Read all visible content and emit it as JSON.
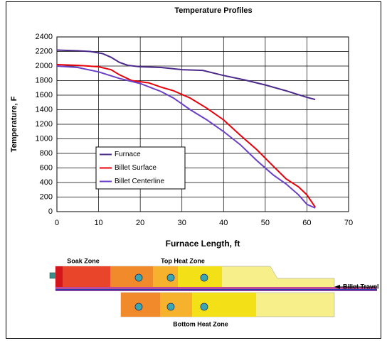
{
  "chart_data": {
    "type": "line",
    "title": "Temperature Profiles",
    "x_label": "Furnace Length, ft",
    "y_label": "Temperature, F",
    "xlim": [
      0,
      70
    ],
    "xticks": [
      0,
      10,
      20,
      30,
      40,
      50,
      60,
      70
    ],
    "ylim": [
      0,
      2400
    ],
    "yticks": [
      0,
      200,
      400,
      600,
      800,
      1000,
      1200,
      1400,
      1600,
      1800,
      2000,
      2200,
      2400
    ],
    "grid": true,
    "legend": "lower left",
    "series": [
      {
        "name": "Furnace",
        "color": "#4b2a8c",
        "x": [
          0,
          5,
          8,
          11,
          13,
          15,
          17,
          20,
          25,
          30,
          35,
          40,
          45,
          50,
          55,
          60,
          62
        ],
        "values": [
          2220,
          2210,
          2200,
          2170,
          2120,
          2050,
          2010,
          1990,
          1980,
          1950,
          1940,
          1870,
          1810,
          1740,
          1660,
          1570,
          1540
        ]
      },
      {
        "name": "Billet Surface",
        "color": "#e8000b",
        "x": [
          0,
          5,
          10,
          13,
          15,
          18,
          22,
          25,
          28,
          32,
          36,
          40,
          44,
          48,
          52,
          55,
          58,
          60,
          62
        ],
        "values": [
          2020,
          2010,
          1990,
          1950,
          1880,
          1800,
          1770,
          1710,
          1660,
          1560,
          1420,
          1260,
          1050,
          850,
          620,
          450,
          340,
          230,
          60
        ]
      },
      {
        "name": "Billet Centerline",
        "color": "#6a3fc9",
        "x": [
          0,
          5,
          10,
          15,
          20,
          25,
          28,
          32,
          36,
          40,
          44,
          48,
          52,
          55,
          58,
          60,
          62
        ],
        "values": [
          2000,
          1980,
          1920,
          1830,
          1760,
          1650,
          1560,
          1400,
          1260,
          1100,
          920,
          700,
          500,
          380,
          230,
          100,
          50
        ]
      }
    ]
  },
  "diagram": {
    "soak_zone": "Soak Zone",
    "top_zone": "Top Heat Zone",
    "bottom_zone": "Bottom Heat Zone",
    "billet_travel": "Billet Travel"
  }
}
